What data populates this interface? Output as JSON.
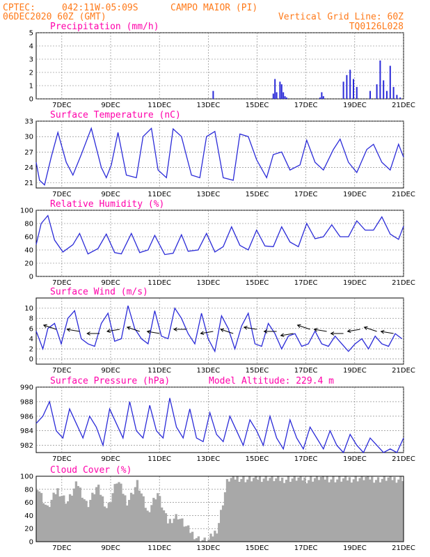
{
  "header": {
    "source": "CPTEC:",
    "coords": "042:11W-05:09S",
    "location": "CAMPO MAIOR (PI)",
    "run": "06DEC2020 60Z (GMT)",
    "grid_note": "Vertical Grid Line: 60Z",
    "code": "TQ0126L028"
  },
  "x_dates": [
    "7DEC",
    "9DEC",
    "11DEC",
    "13DEC",
    "15DEC",
    "17DEC",
    "19DEC",
    "21DEC"
  ],
  "colors": {
    "line": "#2a2ad8",
    "cloud": "#a8a8a8",
    "title": "#ff00aa",
    "header": "#ff7a1a"
  },
  "chart_data": [
    {
      "type": "bar",
      "title": "Precipitation (mm/h)",
      "ylim": [
        0,
        5
      ],
      "yticks": [
        0,
        1,
        2,
        3,
        4,
        5
      ],
      "x": [
        5.3,
        7.1,
        7.15,
        7.2,
        7.3,
        7.35,
        7.4,
        7.45,
        7.5,
        8.5,
        8.55,
        8.6,
        9.2,
        9.3,
        9.4,
        9.5,
        9.6,
        10.0,
        10.2,
        10.3,
        10.4,
        10.5,
        10.6,
        10.7,
        10.8,
        10.9
      ],
      "values": [
        0.6,
        0.4,
        1.5,
        0.5,
        1.3,
        1.1,
        0.5,
        0.2,
        0.1,
        0.1,
        0.5,
        0.2,
        1.3,
        1.8,
        2.2,
        1.5,
        0.9,
        0.6,
        1.1,
        2.9,
        1.4,
        0.6,
        2.5,
        0.9,
        0.3,
        0.1
      ]
    },
    {
      "type": "line",
      "title": "Surface Temperature (nC)",
      "ylim": [
        20,
        33
      ],
      "yticks": [
        21,
        24,
        27,
        30,
        33
      ],
      "x": [
        0,
        0.1,
        0.25,
        0.45,
        0.65,
        0.9,
        1.1,
        1.35,
        1.65,
        1.95,
        2.1,
        2.25,
        2.45,
        2.7,
        3.0,
        3.2,
        3.45,
        3.65,
        3.9,
        4.1,
        4.35,
        4.65,
        4.9,
        5.1,
        5.35,
        5.6,
        5.9,
        6.1,
        6.35,
        6.6,
        6.9,
        7.1,
        7.35,
        7.6,
        7.9,
        8.1,
        8.35,
        8.6,
        8.9,
        9.1,
        9.35,
        9.6,
        9.9,
        10.1,
        10.35,
        10.6,
        10.85,
        11.0
      ],
      "values": [
        25,
        21.5,
        20.6,
        26,
        30.8,
        25,
        22.5,
        26.5,
        31.6,
        24,
        22,
        24.5,
        30.8,
        22.5,
        22,
        30,
        31.6,
        23.5,
        22,
        31.5,
        30,
        22.5,
        22,
        30,
        31,
        22,
        21.5,
        30.5,
        30,
        25.5,
        22,
        26.5,
        27,
        23.5,
        24.5,
        29.3,
        25,
        23.5,
        27.5,
        29.5,
        25,
        23,
        27.5,
        28.5,
        25,
        23.5,
        28.5,
        26
      ]
    },
    {
      "type": "line",
      "title": "Relative Humidity (%)",
      "ylim": [
        0,
        100
      ],
      "yticks": [
        0,
        20,
        40,
        60,
        80,
        100
      ],
      "x": [
        0,
        0.15,
        0.35,
        0.55,
        0.8,
        1.1,
        1.3,
        1.55,
        1.85,
        2.1,
        2.35,
        2.55,
        2.85,
        3.1,
        3.35,
        3.55,
        3.85,
        4.1,
        4.35,
        4.55,
        4.85,
        5.1,
        5.35,
        5.6,
        5.85,
        6.1,
        6.35,
        6.6,
        6.85,
        7.1,
        7.35,
        7.6,
        7.85,
        8.1,
        8.35,
        8.6,
        8.85,
        9.1,
        9.35,
        9.6,
        9.85,
        10.1,
        10.35,
        10.6,
        10.85,
        11.0
      ],
      "values": [
        48,
        80,
        92,
        55,
        37,
        48,
        65,
        34,
        42,
        64,
        36,
        34,
        65,
        36,
        40,
        62,
        33,
        35,
        63,
        38,
        40,
        65,
        37,
        45,
        75,
        47,
        40,
        70,
        46,
        45,
        75,
        52,
        45,
        80,
        57,
        60,
        78,
        60,
        60,
        84,
        70,
        70,
        90,
        64,
        56,
        76
      ]
    },
    {
      "type": "line",
      "title": "Surface Wind (m/s)",
      "ylim": [
        -1,
        12
      ],
      "yticks": [
        0,
        2,
        4,
        6,
        8,
        10
      ],
      "x": [
        0,
        0.2,
        0.35,
        0.55,
        0.75,
        0.95,
        1.15,
        1.35,
        1.55,
        1.75,
        1.95,
        2.15,
        2.35,
        2.55,
        2.75,
        2.95,
        3.15,
        3.35,
        3.55,
        3.75,
        3.95,
        4.15,
        4.35,
        4.55,
        4.75,
        4.95,
        5.15,
        5.35,
        5.55,
        5.75,
        5.95,
        6.15,
        6.35,
        6.55,
        6.75,
        6.95,
        7.15,
        7.35,
        7.55,
        7.75,
        7.95,
        8.15,
        8.35,
        8.55,
        8.75,
        8.95,
        9.15,
        9.35,
        9.55,
        9.75,
        9.95,
        10.15,
        10.35,
        10.55,
        10.75,
        10.95
      ],
      "values": [
        5.5,
        2,
        6,
        7,
        3,
        8,
        9.5,
        4,
        3,
        2.5,
        7,
        9,
        3.5,
        4,
        10.5,
        6,
        4,
        3,
        9.5,
        4.5,
        4,
        10,
        8,
        5,
        3,
        9,
        4,
        1.5,
        8.5,
        6,
        2,
        6.5,
        9,
        3,
        2.5,
        7,
        5,
        2,
        4.5,
        5,
        2.5,
        3,
        5.5,
        3,
        2.5,
        4.5,
        3,
        1.5,
        3,
        4,
        2,
        4.5,
        3,
        2.5,
        5,
        4
      ]
    },
    {
      "type": "line",
      "title": "Surface Pressure (hPa)",
      "annotation": "Model Altitude: 229.4 m",
      "ylim": [
        981,
        990
      ],
      "yticks": [
        982,
        984,
        986,
        988,
        990
      ],
      "x": [
        0,
        0.2,
        0.4,
        0.6,
        0.8,
        1.0,
        1.2,
        1.4,
        1.6,
        1.8,
        2.0,
        2.2,
        2.4,
        2.6,
        2.8,
        3.0,
        3.2,
        3.4,
        3.6,
        3.8,
        4.0,
        4.2,
        4.4,
        4.6,
        4.8,
        5.0,
        5.2,
        5.4,
        5.6,
        5.8,
        6.0,
        6.2,
        6.4,
        6.6,
        6.8,
        7.0,
        7.2,
        7.4,
        7.6,
        7.8,
        8.0,
        8.2,
        8.4,
        8.6,
        8.8,
        9.0,
        9.2,
        9.4,
        9.6,
        9.8,
        10.0,
        10.2,
        10.4,
        10.6,
        10.8,
        11.0
      ],
      "values": [
        985,
        986,
        988,
        984,
        983,
        987,
        985,
        983,
        986,
        984.5,
        982,
        987,
        985,
        983,
        988,
        984,
        983,
        987.5,
        984,
        983,
        988.5,
        984.5,
        983,
        987,
        983,
        982.5,
        986.5,
        983.5,
        982.5,
        986,
        984,
        982,
        985.5,
        984,
        982,
        986,
        983,
        981.5,
        985.5,
        983,
        981.5,
        984.5,
        983,
        981.5,
        984,
        982,
        981,
        983.5,
        982,
        981,
        983,
        982,
        981,
        981.5,
        981,
        983
      ]
    },
    {
      "type": "area",
      "title": "Cloud Cover (%)",
      "ylim": [
        0,
        100
      ],
      "yticks": [
        0,
        20,
        40,
        60,
        80,
        100
      ],
      "x": [
        0,
        0.3,
        0.6,
        0.9,
        1.2,
        1.5,
        1.8,
        2.1,
        2.4,
        2.7,
        3.0,
        3.3,
        3.6,
        3.9,
        4.2,
        4.5,
        4.8,
        5.1,
        5.4,
        5.7,
        6.0,
        6.3,
        6.6,
        6.9,
        7.2,
        7.5,
        7.8,
        8.1,
        8.4,
        8.7,
        9.0,
        9.3,
        9.6,
        9.9,
        10.2,
        10.5,
        10.8,
        11.0
      ],
      "values": [
        85,
        50,
        80,
        60,
        90,
        55,
        85,
        50,
        95,
        60,
        90,
        45,
        75,
        30,
        40,
        20,
        5,
        0,
        20,
        95,
        98,
        95,
        97,
        98,
        95,
        96,
        97,
        95,
        98,
        97,
        95,
        96,
        97,
        98,
        95,
        97,
        96,
        98
      ]
    }
  ]
}
